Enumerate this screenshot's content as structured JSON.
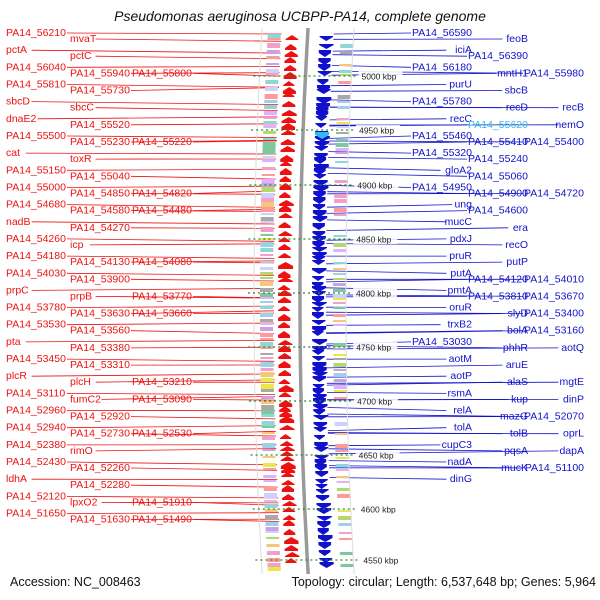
{
  "title": "Pseudomonas aeruginosa UCBPP-PA14, complete genome",
  "footer": {
    "accession": "Accession: NC_008463",
    "summary": "Topology: circular; Length: 6,537,648 bp; Genes: 5,964"
  },
  "colors": {
    "forward": "#ee1111",
    "reverse": "#1111cc",
    "highlight": "#33bbee",
    "backbone": "#9a9a9a",
    "tick": "#2a8a2a"
  },
  "ticks": [
    "5000 kbp",
    "4950 kbp",
    "4900 kbp",
    "4850 kbp",
    "4800 kbp",
    "4750 kbp",
    "4700 kbp",
    "4650 kbp",
    "4600 kbp",
    "4550 kbp"
  ],
  "left_labels": [
    "PA14_56210",
    "mvaT",
    "pctA",
    "pctC",
    "PA14_56040",
    "PA14_55940",
    "PA14_55800",
    "PA14_55810",
    "PA14_55730",
    "sbcD",
    "sbcC",
    "dnaE2",
    "PA14_55520",
    "PA14_55500",
    "PA14_55230",
    "PA14_55220",
    "cat",
    "toxR",
    "PA14_55150",
    "PA14_55040",
    "PA14_55000",
    "PA14_54850",
    "PA14_54820",
    "PA14_54680",
    "PA14_54580",
    "PA14_54480",
    "nadB",
    "PA14_54270",
    "PA14_54260",
    "icp",
    "PA14_54180",
    "PA14_54130",
    "PA14_54080",
    "PA14_54030",
    "PA14_53900",
    "prpC",
    "prpB",
    "PA14_53770",
    "PA14_53780",
    "PA14_53630",
    "PA14_53660",
    "PA14_53530",
    "PA14_53560",
    "pta",
    "PA14_53380",
    "PA14_53450",
    "PA14_53310",
    "plcR",
    "plcH",
    "PA14_53210",
    "PA14_53110",
    "fumC2",
    "PA14_53090",
    "PA14_52960",
    "PA14_52920",
    "PA14_52940",
    "PA14_52730",
    "PA14_52530",
    "PA14_52380",
    "rimO",
    "PA14_52430",
    "PA14_52260",
    "ldhA",
    "PA14_52280",
    "PA14_52120",
    "lpxO2",
    "PA14_51910",
    "PA14_51650",
    "PA14_51630",
    "PA14_51490"
  ],
  "right_labels": [
    "PA14_56590",
    "feoB",
    "iciA",
    "PA14_56390",
    "PA14_56180",
    "mntH1",
    "PA14_55980",
    "purU",
    "sbcB",
    "PA14_55780",
    "recD",
    "recB",
    "recC",
    "PA14_55620",
    "nemO",
    "PA14_55460",
    "PA14_55410",
    "PA14_55400",
    "PA14_55320",
    "PA14_55240",
    "gloA2",
    "PA14_55060",
    "PA14_54950",
    "PA14_54900",
    "PA14_54720",
    "ung",
    "PA14_54600",
    "mucC",
    "era",
    "pdxJ",
    "recO",
    "pruR",
    "putP",
    "putA",
    "PA14_54120",
    "PA14_54010",
    "pmtA",
    "PA14_53810",
    "PA14_53670",
    "oruR",
    "slyD",
    "PA14_53400",
    "trxB2",
    "bolA",
    "PA14_53160",
    "PA14_53030",
    "phhR",
    "aotQ",
    "aotM",
    "aruE",
    "aotP",
    "alaS",
    "mgtE",
    "rsmA",
    "kup",
    "dinP",
    "relA",
    "mazG",
    "PA14_52070",
    "tolA",
    "tolB",
    "oprL",
    "cupC3",
    "pqsA",
    "dapA",
    "nadA",
    "mucK",
    "PA14_51100",
    "dinG"
  ]
}
